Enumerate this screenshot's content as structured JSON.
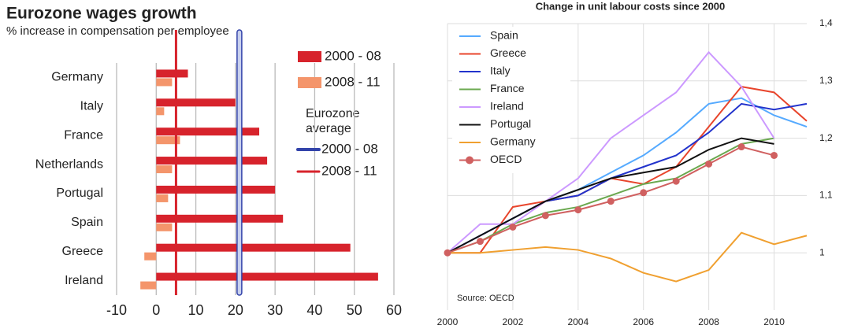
{
  "chart_data": [
    {
      "type": "bar",
      "orientation": "horizontal",
      "title": "Eurozone wages growth",
      "subtitle": "% increase in compensation per employee",
      "categories": [
        "Germany",
        "Italy",
        "France",
        "Netherlands",
        "Portugal",
        "Spain",
        "Greece",
        "Ireland"
      ],
      "series": [
        {
          "name": "2000 - 08",
          "color": "#d7232c",
          "values": [
            8,
            20,
            26,
            28,
            30,
            32,
            49,
            56
          ]
        },
        {
          "name": "2008 - 11",
          "color": "#f4956b",
          "values": [
            4,
            2,
            6,
            4,
            3,
            4,
            -3,
            -4
          ]
        }
      ],
      "reference_title": "Eurozone average",
      "reference_lines": [
        {
          "name": "2000 - 08",
          "color": "#3344aa",
          "value": 21
        },
        {
          "name": "2008 - 11",
          "color": "#d7232c",
          "value": 5
        }
      ],
      "xlim": [
        -10,
        60
      ],
      "xticks": [
        -10,
        0,
        10,
        20,
        30,
        40,
        50,
        60
      ],
      "grid": true
    },
    {
      "type": "line",
      "title": "Change in unit labour costs since 2000",
      "x": [
        2000,
        2001,
        2002,
        2003,
        2004,
        2005,
        2006,
        2007,
        2008,
        2009,
        2010,
        2011
      ],
      "series": [
        {
          "name": "Spain",
          "color": "#55aaff",
          "values": [
            1.0,
            1.03,
            1.06,
            1.09,
            1.11,
            1.14,
            1.17,
            1.21,
            1.26,
            1.27,
            1.24,
            1.22
          ]
        },
        {
          "name": "Greece",
          "color": "#e8452c",
          "values": [
            1.0,
            1.0,
            1.08,
            1.09,
            1.1,
            1.13,
            1.12,
            1.15,
            1.22,
            1.29,
            1.28,
            1.23
          ]
        },
        {
          "name": "Italy",
          "color": "#2233cc",
          "values": [
            1.0,
            1.03,
            1.06,
            1.09,
            1.1,
            1.13,
            1.15,
            1.17,
            1.21,
            1.26,
            1.25,
            1.26
          ]
        },
        {
          "name": "France",
          "color": "#6aa84f",
          "values": [
            1.0,
            1.02,
            1.05,
            1.07,
            1.08,
            1.1,
            1.12,
            1.13,
            1.16,
            1.19,
            1.2,
            null
          ]
        },
        {
          "name": "Ireland",
          "color": "#cc99ff",
          "values": [
            1.0,
            1.05,
            1.05,
            1.09,
            1.13,
            1.2,
            1.24,
            1.28,
            1.35,
            1.29,
            1.2,
            null
          ]
        },
        {
          "name": "Portugal",
          "color": "#111111",
          "values": [
            1.0,
            1.03,
            1.06,
            1.09,
            1.11,
            1.13,
            1.14,
            1.15,
            1.18,
            1.2,
            1.19,
            null
          ]
        },
        {
          "name": "Germany",
          "color": "#f0a030",
          "values": [
            1.0,
            1.0,
            1.005,
            1.01,
            1.005,
            0.99,
            0.965,
            0.95,
            0.97,
            1.035,
            1.015,
            1.03
          ]
        },
        {
          "name": "OECD",
          "color": "#d06060",
          "marker": "circle",
          "values": [
            1.0,
            1.02,
            1.045,
            1.065,
            1.075,
            1.09,
            1.105,
            1.125,
            1.155,
            1.185,
            1.17,
            null
          ]
        }
      ],
      "annotation": "Source: OECD",
      "xlim": [
        2000,
        2011
      ],
      "xticks": [
        2000,
        2002,
        2004,
        2006,
        2008,
        2010
      ],
      "ylim": [
        0.9,
        1.4
      ],
      "yticks": [
        1,
        {
          "value": 1.1,
          "label": "1,1"
        },
        {
          "value": 1.2,
          "label": "1,2"
        },
        {
          "value": 1.3,
          "label": "1,3"
        },
        {
          "value": 1.4,
          "label": "1,4"
        }
      ],
      "grid": true
    }
  ]
}
